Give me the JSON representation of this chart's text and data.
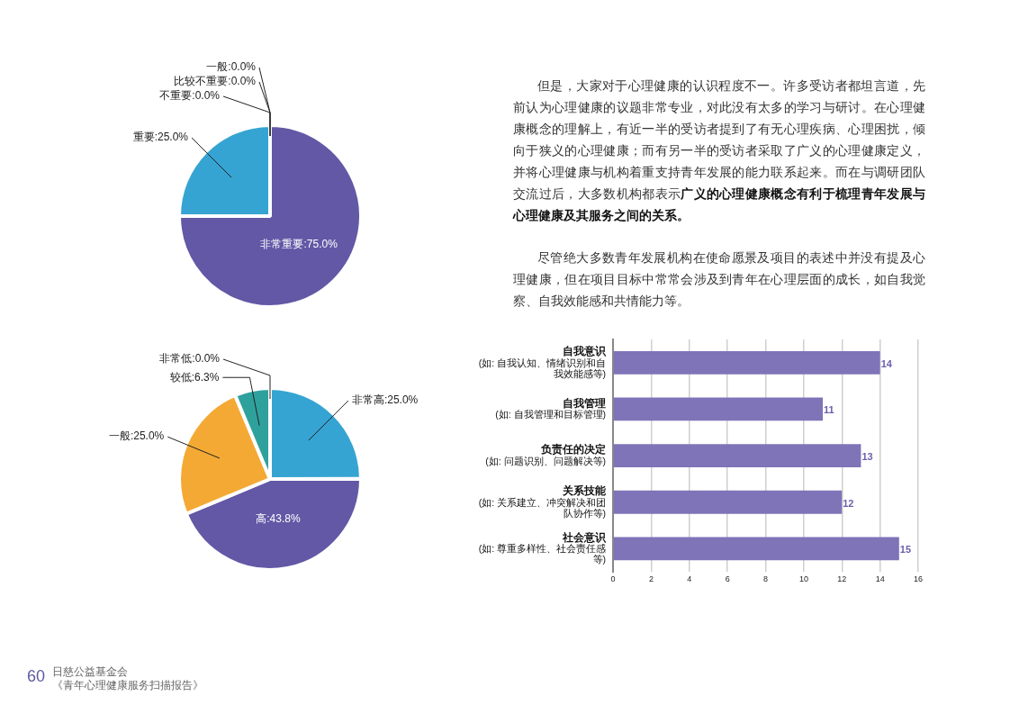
{
  "chart_data": [
    {
      "type": "pie",
      "categories": [
        "非常重要",
        "重要",
        "不重要",
        "比较不重要",
        "一般"
      ],
      "values": [
        75.0,
        25.0,
        0.0,
        0.0,
        0.0
      ],
      "colors": [
        "#6258a6",
        "#35a4d2",
        "#2fa19d",
        "#f4a935",
        "#9b9b9b"
      ],
      "value_labels": [
        ":75.0%",
        ":25.0%",
        ":0.0%",
        ":0.0%",
        ":0.0%"
      ],
      "legend": false
    },
    {
      "type": "pie",
      "categories": [
        "非常高",
        "高",
        "一般",
        "较低",
        "非常低"
      ],
      "values": [
        25.0,
        43.8,
        25.0,
        6.3,
        0.0
      ],
      "colors": [
        "#35a4d2",
        "#6258a6",
        "#f4a935",
        "#2fa19d",
        "#9b9b9b"
      ],
      "value_labels": [
        ":25.0%",
        ":43.8%",
        ":25.0%",
        ":6.3%",
        ":0.0%"
      ],
      "legend": false
    },
    {
      "type": "bar",
      "orientation": "horizontal",
      "categories": [
        "自我意识(如: 自我认知、情绪识别和自我效能感等)",
        "自我管理(如: 自我管理和目标管理)",
        "负责任的决定(如: 问题识别、问题解决等)",
        "关系技能(如: 关系建立、冲突解决和团队协作等)",
        "社会意识(如: 尊重多样性、社会责任感等)"
      ],
      "values": [
        14,
        11,
        13,
        12,
        15
      ],
      "color": "#7f74b8",
      "xlim": [
        0,
        16
      ],
      "xticks": [
        0,
        2,
        4,
        6,
        8,
        10,
        12,
        14,
        16
      ],
      "grid": "x",
      "data_labels": true,
      "legend": false
    },
    {
      "type": "other",
      "annotations": [
        "但是，大家对于心理健康的认识程度不一。许多受访者都坦言道，先前认为心理健康的议题非常专业，对此没有太多的学习与研讨。在心理健康概念的理解上，有近一半的受访者提到了有无心理疾病、心理困扰，倾向于狭义的心理健康；而有另一半的受访者采取了广义的心理健康定义，并将心理健康与机构着重支持青年发展的能力联系起来。而在与调研团队交流过后，大多数机构都表示",
        "广义的心理健康概念有利于梳理青年发展与心理健康及其服务之间的关系。",
        "尽管绝大多数青年发展机构在使命愿景及项目的表述中并没有提及心理健康，但在项目目标中常常会涉及到青年在心理层面的成长，如自我觉察、自我效能感和共情能力等。",
        "60",
        "日慈公益基金会",
        "《青年心理健康服务扫描报告》"
      ]
    }
  ]
}
